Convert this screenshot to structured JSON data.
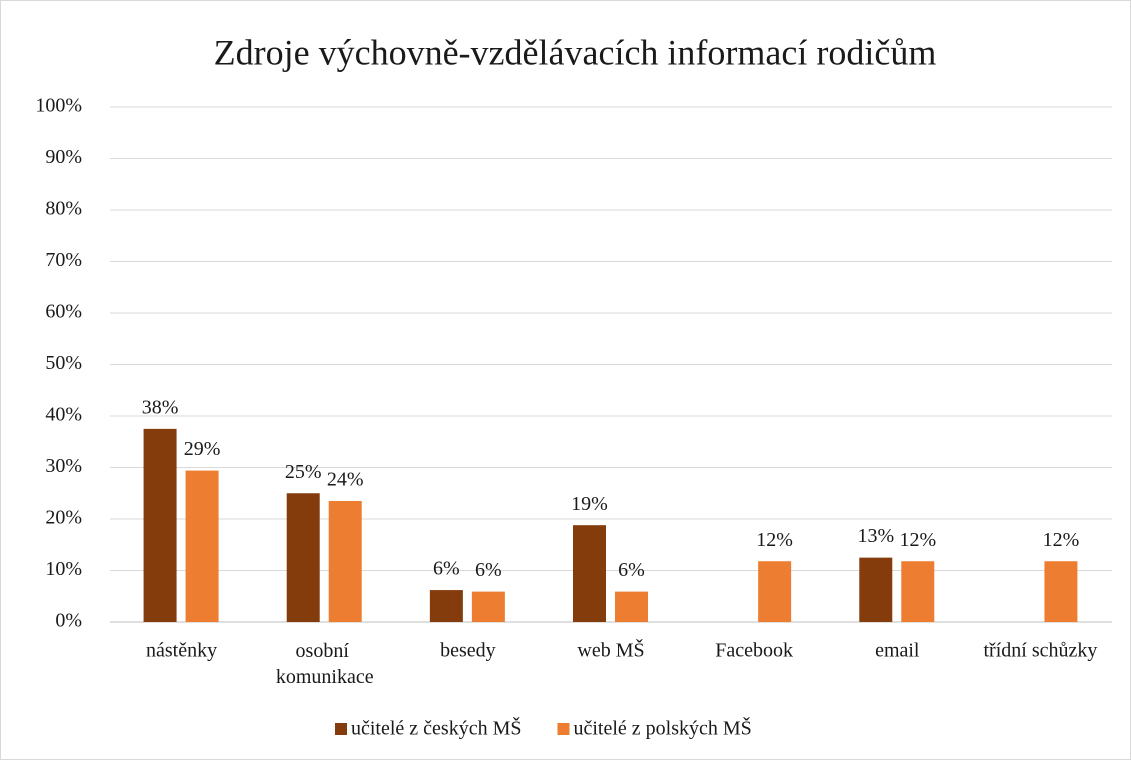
{
  "chart_data": {
    "type": "bar",
    "title": "Zdroje výchovně-vzdělávacích informací rodičům",
    "categories": [
      "nástěnky",
      "osobní komunikace",
      "besedy",
      "web MŠ",
      "Facebook",
      "email",
      "třídní schůzky"
    ],
    "series": [
      {
        "name": "učitelé z českých MŠ",
        "color": "#843c0c",
        "values": [
          37.5,
          25,
          6.2,
          18.8,
          null,
          12.5,
          null
        ],
        "value_labels": [
          "38%",
          "25%",
          "6%",
          "19%",
          null,
          "13%",
          null
        ]
      },
      {
        "name": "učitelé z polských MŠ",
        "color": "#ed7d31",
        "values": [
          29.4,
          23.5,
          5.9,
          5.9,
          11.8,
          11.8,
          11.8
        ],
        "value_labels": [
          "29%",
          "24%",
          "6%",
          "6%",
          "12%",
          "12%",
          "12%"
        ]
      }
    ],
    "ylim": [
      0,
      100
    ],
    "yticks": [
      {
        "value": 0,
        "label": "0%"
      },
      {
        "value": 10,
        "label": "10%"
      },
      {
        "value": 20,
        "label": "20%"
      },
      {
        "value": 30,
        "label": "30%"
      },
      {
        "value": 40,
        "label": "40%"
      },
      {
        "value": 50,
        "label": "50%"
      },
      {
        "value": 60,
        "label": "60%"
      },
      {
        "value": 70,
        "label": "70%"
      },
      {
        "value": 80,
        "label": "80%"
      },
      {
        "value": 90,
        "label": "90%"
      },
      {
        "value": 100,
        "label": "100%"
      }
    ],
    "grid": true,
    "legend": "bottom"
  }
}
